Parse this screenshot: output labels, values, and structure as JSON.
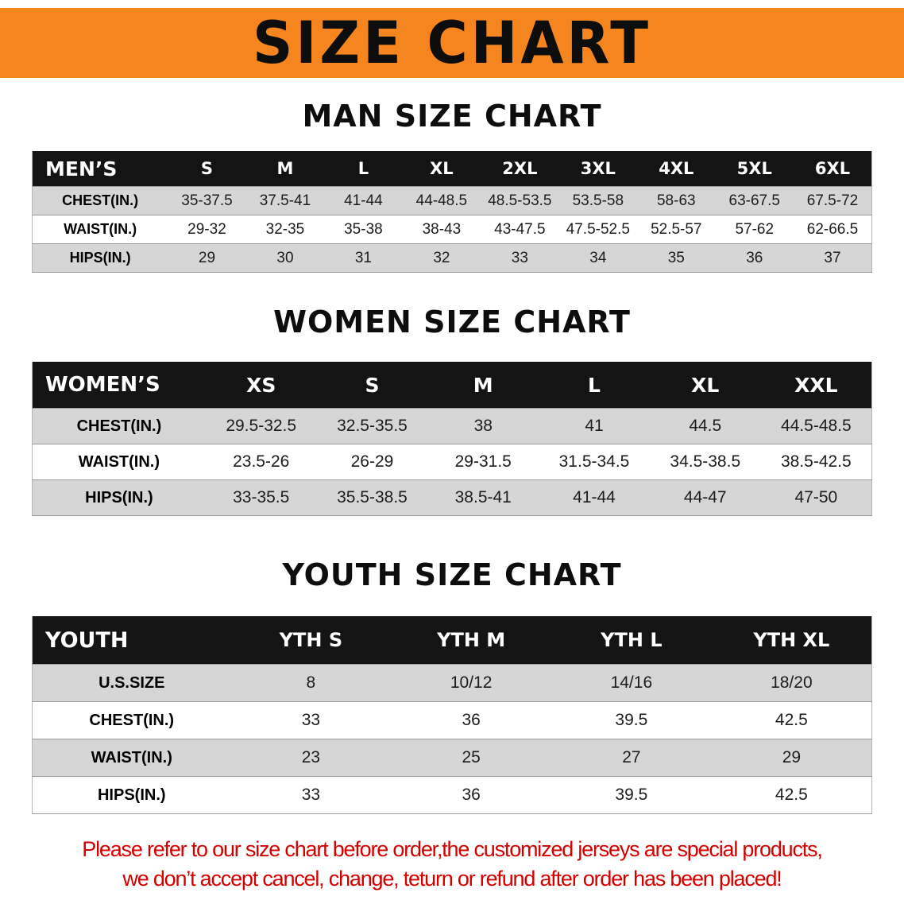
{
  "banner": {
    "title": "SIZE CHART"
  },
  "colors": {
    "banner_bg": "#F5861F",
    "table_header_bg": "#141414",
    "row_shaded": "#d6d6d6",
    "footer_red": "#d40000"
  },
  "sections": [
    {
      "heading": "MAN SIZE CHART",
      "table": {
        "header": [
          "MEN’S",
          "S",
          "M",
          "L",
          "XL",
          "2XL",
          "3XL",
          "4XL",
          "5XL",
          "6XL"
        ],
        "rows": [
          [
            "CHEST(IN.)",
            "35-37.5",
            "37.5-41",
            "41-44",
            "44-48.5",
            "48.5-53.5",
            "53.5-58",
            "58-63",
            "63-67.5",
            "67.5-72"
          ],
          [
            "WAIST(IN.)",
            "29-32",
            "32-35",
            "35-38",
            "38-43",
            "43-47.5",
            "47.5-52.5",
            "52.5-57",
            "57-62",
            "62-66.5"
          ],
          [
            "HIPS(IN.)",
            "29",
            "30",
            "31",
            "32",
            "33",
            "34",
            "35",
            "36",
            "37"
          ]
        ]
      }
    },
    {
      "heading": "WOMEN SIZE CHART",
      "table": {
        "header": [
          "WOMEN’S",
          "XS",
          "S",
          "M",
          "L",
          "XL",
          "XXL"
        ],
        "rows": [
          [
            "CHEST(IN.)",
            "29.5-32.5",
            "32.5-35.5",
            "38",
            "41",
            "44.5",
            "44.5-48.5"
          ],
          [
            "WAIST(IN.)",
            "23.5-26",
            "26-29",
            "29-31.5",
            "31.5-34.5",
            "34.5-38.5",
            "38.5-42.5"
          ],
          [
            "HIPS(IN.)",
            "33-35.5",
            "35.5-38.5",
            "38.5-41",
            "41-44",
            "44-47",
            "47-50"
          ]
        ]
      }
    },
    {
      "heading": "YOUTH SIZE CHART",
      "table": {
        "header": [
          "YOUTH",
          "YTH S",
          "YTH M",
          "YTH L",
          "YTH XL"
        ],
        "rows": [
          [
            "U.S.SIZE",
            "8",
            "10/12",
            "14/16",
            "18/20"
          ],
          [
            "CHEST(IN.)",
            "33",
            "36",
            "39.5",
            "42.5"
          ],
          [
            "WAIST(IN.)",
            "23",
            "25",
            "27",
            "29"
          ],
          [
            "HIPS(IN.)",
            "33",
            "36",
            "39.5",
            "42.5"
          ]
        ]
      }
    }
  ],
  "footer": {
    "line1": "Please refer to our size chart before order,the customized jerseys are special products,",
    "line2": "we don’t accept cancel, change, teturn or refund after order has been placed!"
  }
}
